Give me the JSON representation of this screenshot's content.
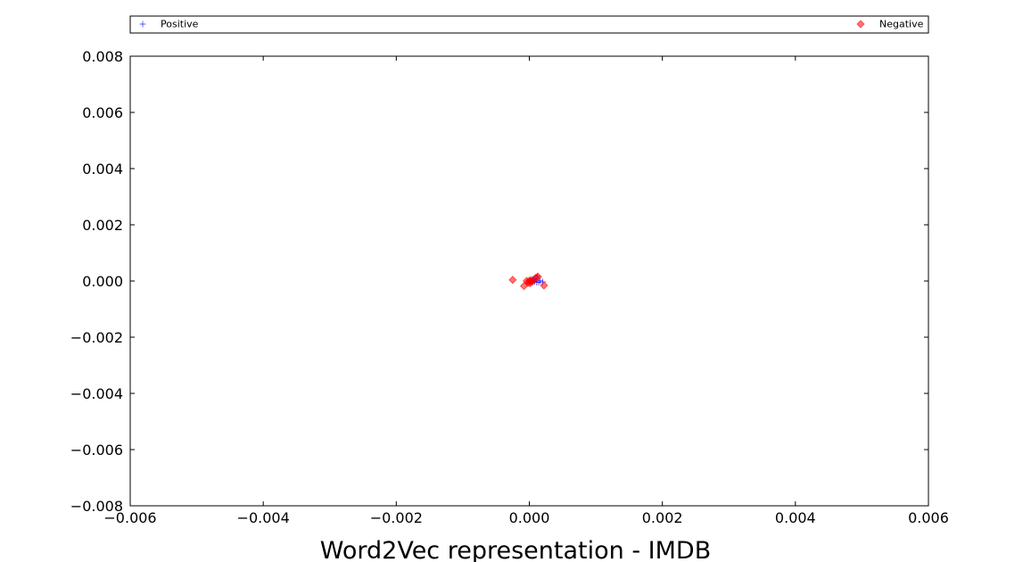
{
  "chart_data": {
    "type": "scatter",
    "xlabel": "Word2Vec representation - IMDB",
    "ylabel": "",
    "xlim": [
      -0.006,
      0.006
    ],
    "ylim": [
      -0.008,
      0.008
    ],
    "x_ticks": [
      "−0.006",
      "−0.004",
      "−0.002",
      "0.000",
      "0.002",
      "0.004",
      "0.006"
    ],
    "x_tick_values": [
      -0.006,
      -0.004,
      -0.002,
      0.0,
      0.002,
      0.004,
      0.006
    ],
    "y_ticks": [
      "0.008",
      "0.006",
      "0.004",
      "0.002",
      "0.000",
      "−0.002",
      "−0.004",
      "−0.006",
      "−0.008"
    ],
    "y_tick_values": [
      0.008,
      0.006,
      0.004,
      0.002,
      0.0,
      -0.002,
      -0.004,
      -0.006,
      -0.008
    ],
    "grid": false,
    "legend_placement": "top, above plot",
    "series": [
      {
        "name": "Positive",
        "marker": "plus",
        "color": "#0000ff",
        "points": [
          [
            1e-05,
            3e-05
          ],
          [
            4e-05,
            2e-05
          ],
          [
            6e-05,
            8e-05
          ],
          [
            0.0001,
            0.0001
          ],
          [
            0.00012,
            0.00018
          ],
          [
            8e-05,
            -2e-05
          ],
          [
            0.00014,
            -4e-05
          ],
          [
            0.00016,
            1e-05
          ],
          [
            0.0002,
            -3e-05
          ],
          [
            3e-05,
            -1e-05
          ],
          [
            7e-05,
            5e-05
          ],
          [
            0.00011,
            -5e-05
          ]
        ]
      },
      {
        "name": "Negative",
        "marker": "diamond",
        "color": "#ff0000",
        "points": [
          [
            -0.00025,
            4e-05
          ],
          [
            -8e-05,
            -0.00018
          ],
          [
            -4e-05,
            0.0
          ],
          [
            -2e-05,
            -6e-05
          ],
          [
            0.0,
            1e-05
          ],
          [
            2e-05,
            -3e-05
          ],
          [
            3e-05,
            3e-05
          ],
          [
            5e-05,
            -1e-05
          ],
          [
            1e-05,
            -8e-05
          ],
          [
            0.0001,
            0.00012
          ],
          [
            0.00013,
            0.00015
          ],
          [
            0.00022,
            -0.00016
          ]
        ]
      }
    ]
  }
}
